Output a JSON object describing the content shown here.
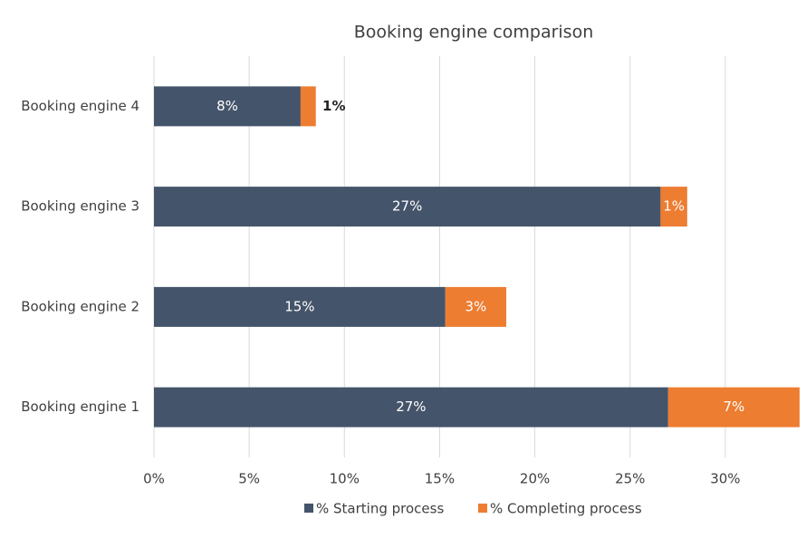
{
  "chart_data": {
    "type": "stacked-bar-horizontal",
    "title": "Booking engine comparison",
    "categories": [
      "Booking engine 4",
      "Booking engine 3",
      "Booking engine 2",
      "Booking engine 1"
    ],
    "series": [
      {
        "name": "% Starting process",
        "color": "#44546a",
        "values": [
          7.7,
          26.6,
          15.3,
          27.0
        ],
        "value_labels": [
          "8%",
          "27%",
          "15%",
          "27%"
        ]
      },
      {
        "name": "% Completing process",
        "color": "#ed7d31",
        "values": [
          0.8,
          1.4,
          3.2,
          6.9
        ],
        "value_labels": [
          "1%",
          "1%",
          "3%",
          "7%"
        ]
      }
    ],
    "xlim": [
      0,
      34
    ],
    "xticks": [
      {
        "value": 0,
        "label": "0%"
      },
      {
        "value": 5,
        "label": "5%"
      },
      {
        "value": 10,
        "label": "10%"
      },
      {
        "value": 15,
        "label": "15%"
      },
      {
        "value": 20,
        "label": "20%"
      },
      {
        "value": 25,
        "label": "25%"
      },
      {
        "value": 30,
        "label": "30%"
      }
    ],
    "grid": true,
    "legend": "bottom"
  }
}
